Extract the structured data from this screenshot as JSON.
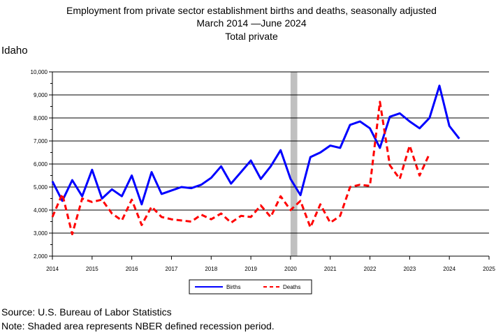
{
  "chart_data": {
    "type": "line",
    "title": "Employment from private sector establishment births and deaths, seasonally adjusted",
    "subtitle": "March 2014 —June 2024",
    "series_title": "Total private",
    "region": "Idaho",
    "xlim": [
      2014,
      2025
    ],
    "ylim": [
      2000,
      10000
    ],
    "x_ticks": [
      "2014",
      "2015",
      "2016",
      "2017",
      "2018",
      "2019",
      "2020",
      "2021",
      "2022",
      "2023",
      "2024",
      "2025"
    ],
    "y_ticks": [
      "2,000",
      "3,000",
      "4,000",
      "5,000",
      "6,000",
      "7,000",
      "8,000",
      "9,000",
      "10,000"
    ],
    "grid": "horizontal",
    "legend_placement": "bottom-center",
    "recession": {
      "start": 2020.0,
      "end": 2020.17
    },
    "series": [
      {
        "name": "Births",
        "color": "#0000ff",
        "style": "solid",
        "x": [
          2014.0,
          2014.25,
          2014.5,
          2014.75,
          2015.0,
          2015.25,
          2015.5,
          2015.75,
          2016.0,
          2016.25,
          2016.5,
          2016.75,
          2017.0,
          2017.25,
          2017.5,
          2017.75,
          2018.0,
          2018.25,
          2018.5,
          2018.75,
          2019.0,
          2019.25,
          2019.5,
          2019.75,
          2020.0,
          2020.25,
          2020.5,
          2020.75,
          2021.0,
          2021.25,
          2021.5,
          2021.75,
          2022.0,
          2022.25,
          2022.5,
          2022.75,
          2023.0,
          2023.25,
          2023.5,
          2023.75,
          2024.0,
          2024.25
        ],
        "y": [
          5250,
          4400,
          5300,
          4600,
          5750,
          4500,
          4900,
          4600,
          5500,
          4250,
          5650,
          4700,
          4850,
          5000,
          4950,
          5100,
          5400,
          5900,
          5150,
          5650,
          6150,
          5350,
          5900,
          6600,
          5350,
          4650,
          6300,
          6500,
          6800,
          6700,
          7700,
          7850,
          7550,
          6700,
          8050,
          8200,
          7850,
          7550,
          8000,
          9400,
          7650,
          7100
        ]
      },
      {
        "name": "Deaths",
        "color": "#ff0000",
        "style": "dashed",
        "x": [
          2014.0,
          2014.25,
          2014.5,
          2014.75,
          2015.0,
          2015.25,
          2015.5,
          2015.75,
          2016.0,
          2016.25,
          2016.5,
          2016.75,
          2017.0,
          2017.25,
          2017.5,
          2017.75,
          2018.0,
          2018.25,
          2018.5,
          2018.75,
          2019.0,
          2019.25,
          2019.5,
          2019.75,
          2020.0,
          2020.25,
          2020.5,
          2020.75,
          2021.0,
          2021.25,
          2021.5,
          2021.75,
          2022.0,
          2022.25,
          2022.5,
          2022.75,
          2023.0,
          2023.25,
          2023.5
        ],
        "y": [
          3700,
          4700,
          2950,
          4500,
          4350,
          4450,
          3850,
          3550,
          4450,
          3350,
          4150,
          3700,
          3600,
          3550,
          3500,
          3800,
          3600,
          3850,
          3450,
          3750,
          3700,
          4200,
          3700,
          4600,
          4000,
          4400,
          3250,
          4250,
          3450,
          3750,
          5000,
          5100,
          5050,
          8700,
          5950,
          5350,
          6800,
          5500,
          6450
        ]
      }
    ]
  },
  "source": "Source: U.S. Bureau of Labor Statistics",
  "note": "Note: Shaded area represents NBER defined recession period."
}
